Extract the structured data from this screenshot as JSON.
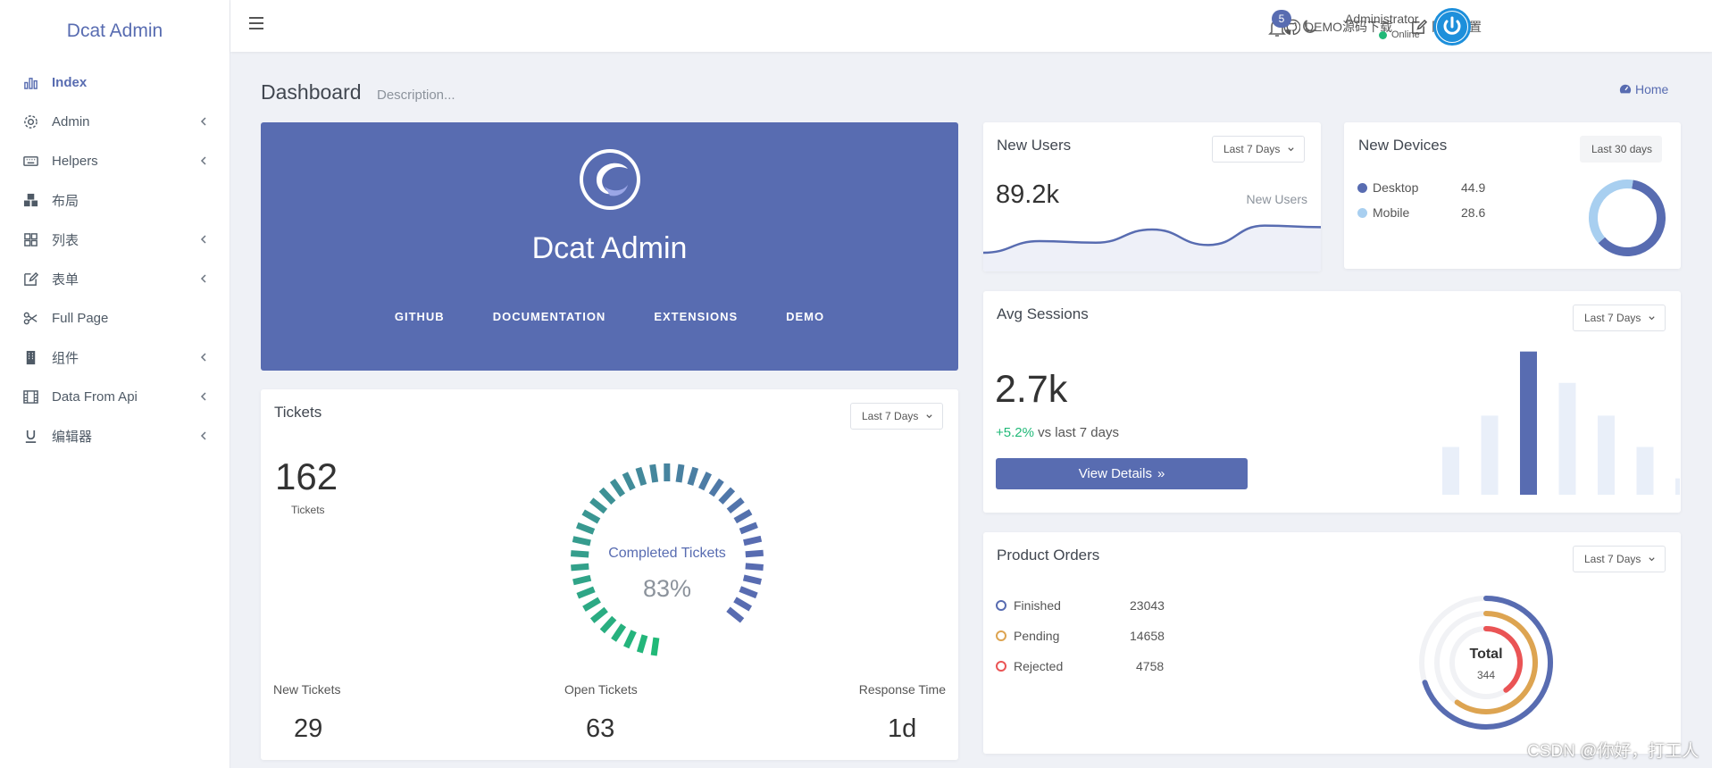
{
  "brand": "Dcat Admin",
  "sidebar": {
    "items": [
      {
        "label": "Index",
        "icon": "bar-chart-icon",
        "active": true
      },
      {
        "label": "Admin",
        "icon": "gear-icon",
        "has_children": true
      },
      {
        "label": "Helpers",
        "icon": "keyboard-icon",
        "has_children": true
      },
      {
        "label": "布局",
        "icon": "cubes-icon"
      },
      {
        "label": "列表",
        "icon": "grid-icon",
        "has_children": true
      },
      {
        "label": "表单",
        "icon": "edit-icon",
        "has_children": true
      },
      {
        "label": "Full Page",
        "icon": "scissors-icon"
      },
      {
        "label": "组件",
        "icon": "building-icon",
        "has_children": true
      },
      {
        "label": "Data From Api",
        "icon": "film-icon",
        "has_children": true
      },
      {
        "label": "编辑器",
        "icon": "underline-icon",
        "has_children": true
      }
    ]
  },
  "header": {
    "demo_download": "DEMO源码下载",
    "site_settings": "网站设置",
    "notifications_count": "5",
    "user_name": "Administrator",
    "user_status": "Online"
  },
  "page": {
    "title": "Dashboard",
    "description": "Description...",
    "breadcrumb_home": "Home"
  },
  "banner": {
    "title": "Dcat Admin",
    "links": [
      "GITHUB",
      "DOCUMENTATION",
      "EXTENSIONS",
      "DEMO"
    ]
  },
  "new_users": {
    "title": "New Users",
    "range": "Last 7 Days",
    "value": "89.2k",
    "label": "New Users"
  },
  "new_devices": {
    "title": "New Devices",
    "range": "Last 30 days",
    "items": [
      {
        "label": "Desktop",
        "value": "44.9",
        "color": "#586cb1"
      },
      {
        "label": "Mobile",
        "value": "28.6",
        "color": "#a8cff0"
      }
    ]
  },
  "avg_sessions": {
    "title": "Avg Sessions",
    "range": "Last 7 Days",
    "value": "2.7k",
    "change": "+5.2%",
    "change_suffix": "vs last 7 days",
    "button": "View Details"
  },
  "tickets": {
    "title": "Tickets",
    "range": "Last 7 Days",
    "total": "162",
    "total_label": "Tickets",
    "gauge_label": "Completed Tickets",
    "gauge_value": "83%",
    "stats": [
      {
        "label": "New Tickets",
        "value": "29"
      },
      {
        "label": "Open Tickets",
        "value": "63"
      },
      {
        "label": "Response Time",
        "value": "1d"
      }
    ]
  },
  "product_orders": {
    "title": "Product Orders",
    "range": "Last 7 Days",
    "items": [
      {
        "label": "Finished",
        "value": "23043",
        "color": "#586cb1"
      },
      {
        "label": "Pending",
        "value": "14658",
        "color": "#dda451"
      },
      {
        "label": "Rejected",
        "value": "4758",
        "color": "#ea5455"
      }
    ],
    "total_label": "Total",
    "total_value": "344"
  },
  "watermark": "CSDN @你好，打工人",
  "chart_data": [
    {
      "type": "area",
      "name": "new-users-sparkline",
      "values": [
        15,
        30,
        28,
        45,
        25,
        50,
        48
      ]
    },
    {
      "type": "pie",
      "name": "new-devices-donut",
      "categories": [
        "Desktop",
        "Mobile"
      ],
      "values": [
        44.9,
        28.6
      ]
    },
    {
      "type": "bar",
      "name": "avg-sessions-bars",
      "values": [
        35,
        58,
        105,
        82,
        58,
        35,
        12
      ],
      "highlight_index": 2,
      "ylim": [
        0,
        110
      ]
    },
    {
      "type": "gauge",
      "name": "tickets-completed",
      "value": 83
    },
    {
      "type": "radial",
      "name": "product-orders",
      "categories": [
        "Finished",
        "Pending",
        "Rejected"
      ],
      "values": [
        70,
        60,
        40
      ]
    }
  ]
}
